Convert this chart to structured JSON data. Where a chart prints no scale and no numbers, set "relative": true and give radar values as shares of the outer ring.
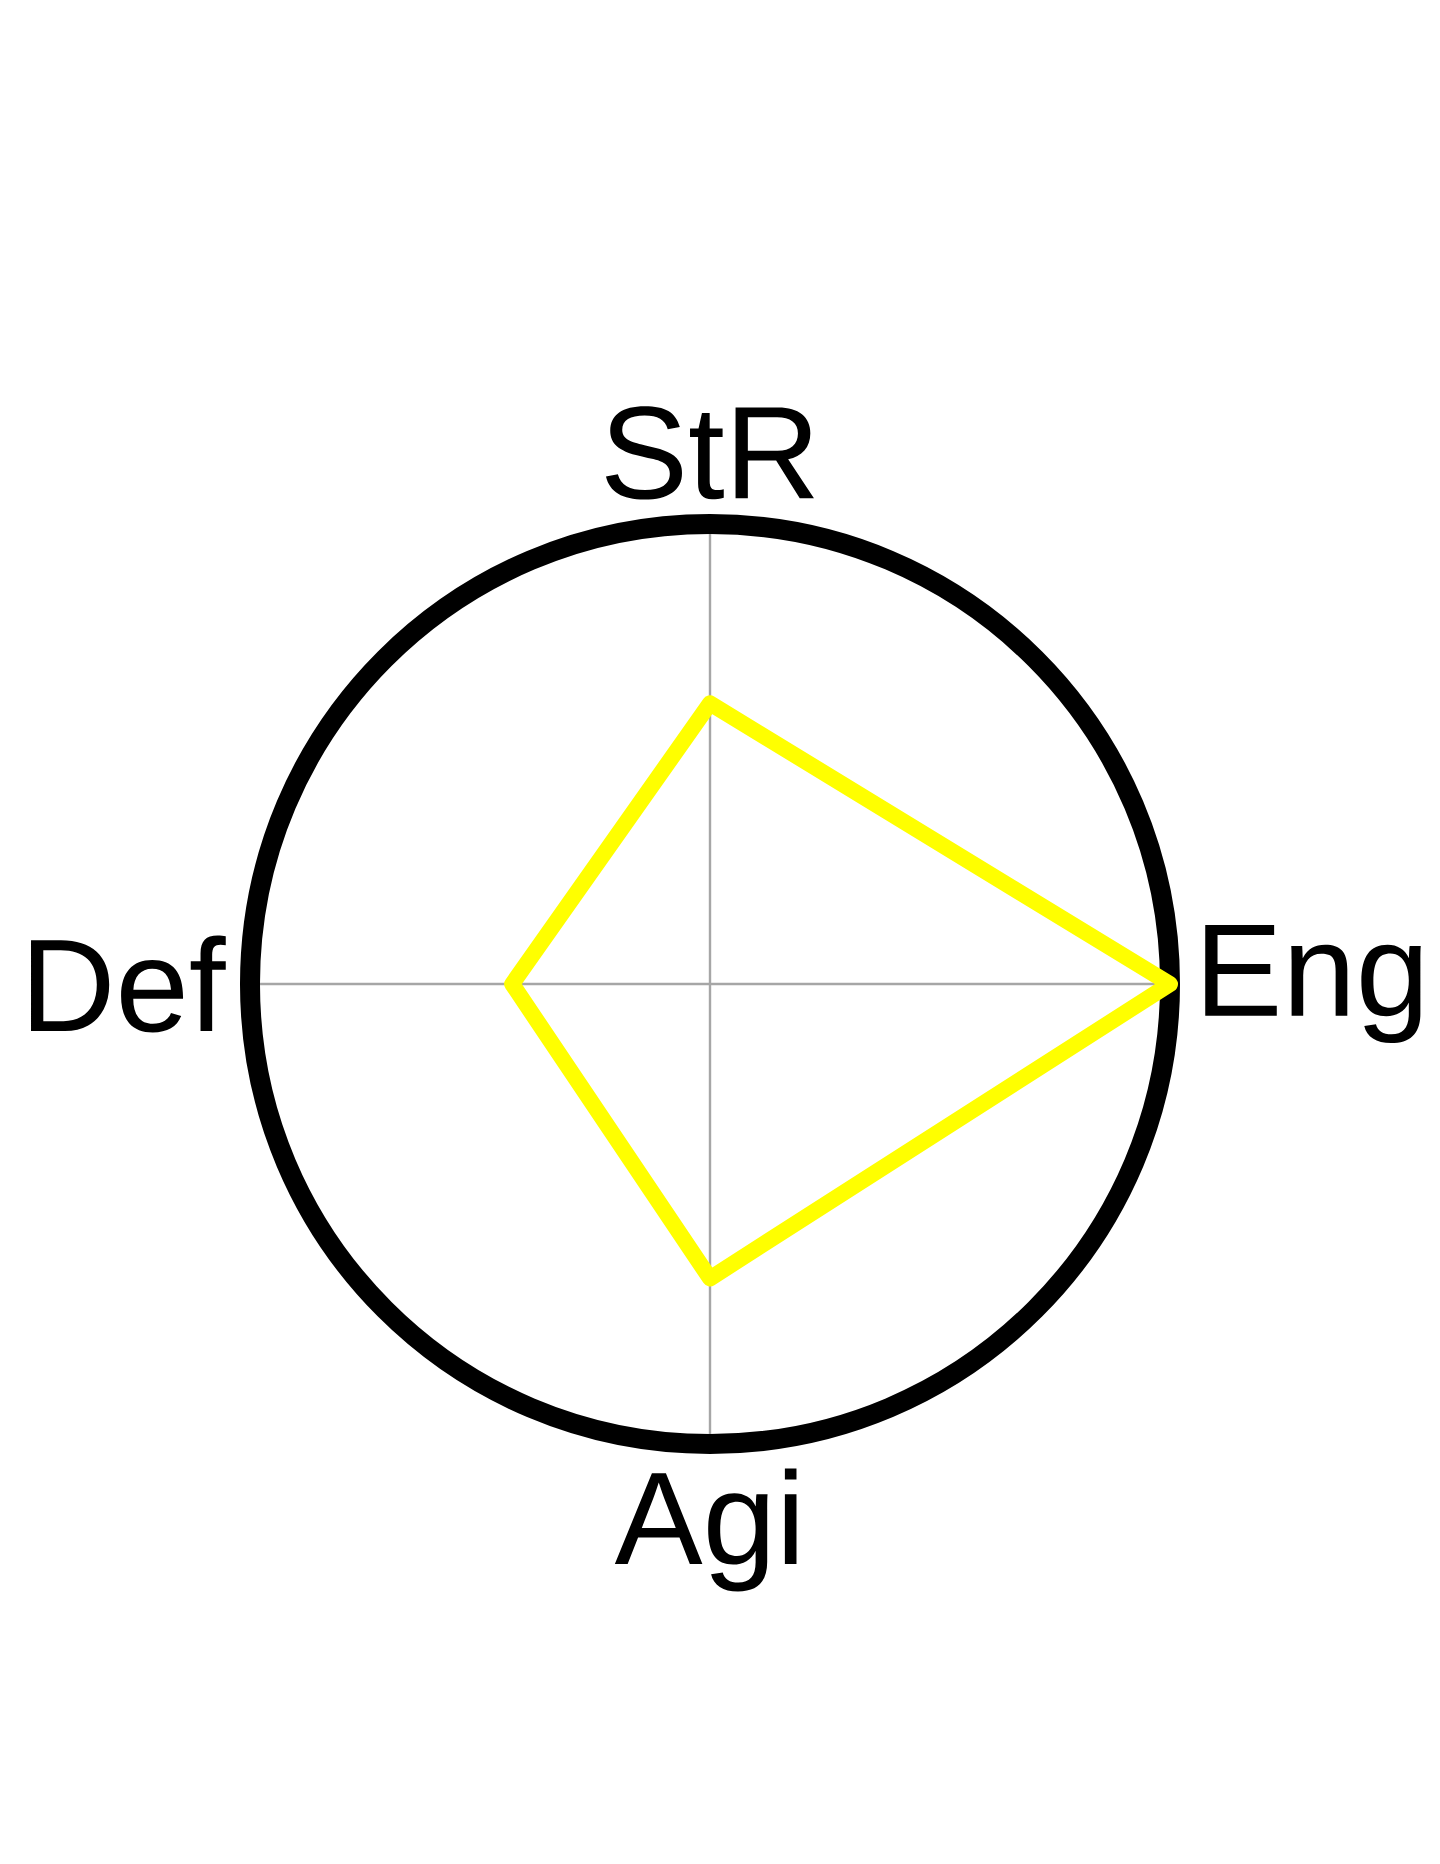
{
  "chart_data": {
    "type": "radar",
    "relative": true,
    "categories": [
      "StR",
      "Eng",
      "Agi",
      "Def"
    ],
    "grid": true,
    "series": [
      {
        "color": "#ffff00",
        "values": [
          0.61,
          1.0,
          0.64,
          0.43
        ]
      }
    ]
  }
}
